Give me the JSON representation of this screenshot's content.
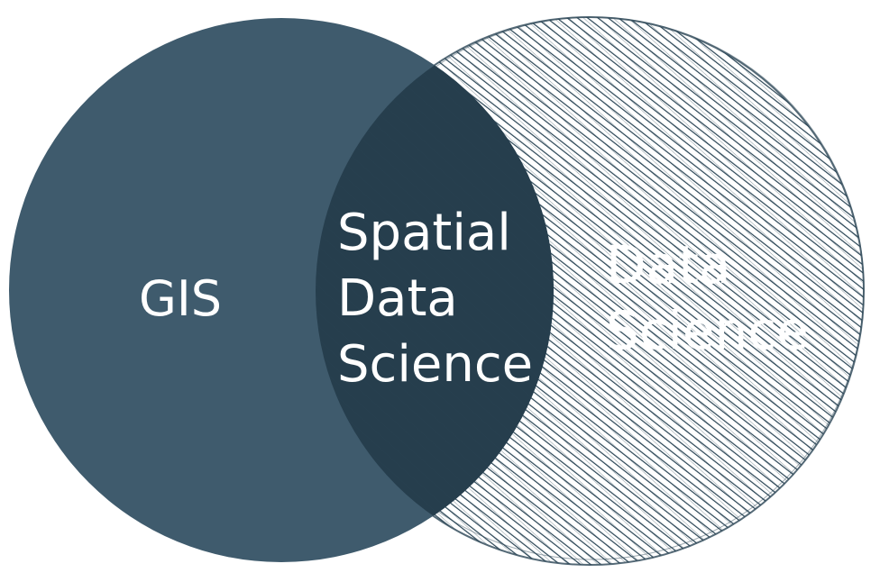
{
  "venn": {
    "left_set": {
      "label": "GIS",
      "fill_color": "#3f5b6d"
    },
    "right_set": {
      "label_lines": [
        "Data",
        "Science"
      ],
      "hatch_color": "#2a4555",
      "style": "hand-drawn hatched"
    },
    "overlap": {
      "label_lines": [
        "Spatial",
        "Data",
        "Science"
      ],
      "fill_color": "#263e4d"
    },
    "text_color": "#ffffff"
  }
}
